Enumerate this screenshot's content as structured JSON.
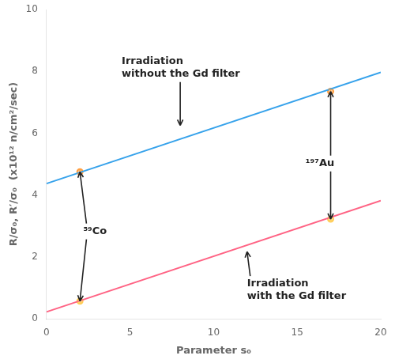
{
  "chart_data": {
    "type": "scatter",
    "xlabel": "Parameter s₀",
    "ylabel": "R/σ₀, R′/σ₀  (x10¹² n/cm²/sec)",
    "xlim": [
      0,
      20
    ],
    "ylim": [
      0,
      10
    ],
    "xticks": [
      0,
      5,
      10,
      15,
      20
    ],
    "yticks": [
      0,
      2,
      4,
      6,
      8,
      10
    ],
    "grid": false,
    "series": [
      {
        "type": "line",
        "x": [
          0,
          20
        ],
        "values": [
          4.37,
          7.97
        ]
      },
      {
        "type": "line",
        "x": [
          0,
          20
        ],
        "values": [
          0.22,
          3.82
        ]
      },
      {
        "type": "scatter",
        "x": [
          2.0,
          17.0
        ],
        "values": [
          4.75,
          7.35
        ],
        "errors": [
          0.06,
          0.06
        ]
      },
      {
        "type": "scatter",
        "x": [
          2.0,
          17.0
        ],
        "values": [
          0.57,
          3.22
        ],
        "errors": [
          0.04,
          0.04
        ]
      }
    ],
    "annotations": [
      {
        "text": "Irradiation\nwithout the Gd filter",
        "x": 4.5,
        "y": 8.5,
        "arrows": [
          [
            8.0,
            6.25
          ]
        ]
      },
      {
        "text": "Irradiation\nwith the Gd filter",
        "x": 12.0,
        "y": 1.3,
        "arrows": [
          [
            12.0,
            2.17
          ]
        ]
      },
      {
        "text": "⁵⁹Co",
        "x": 2.2,
        "y": 3.0,
        "arrows": [
          [
            2.0,
            4.75
          ],
          [
            2.0,
            0.57
          ]
        ]
      },
      {
        "text": "¹⁹⁷Au",
        "x": 15.5,
        "y": 5.2,
        "arrows": [
          [
            17.0,
            7.35
          ],
          [
            17.0,
            3.22
          ]
        ]
      }
    ]
  }
}
